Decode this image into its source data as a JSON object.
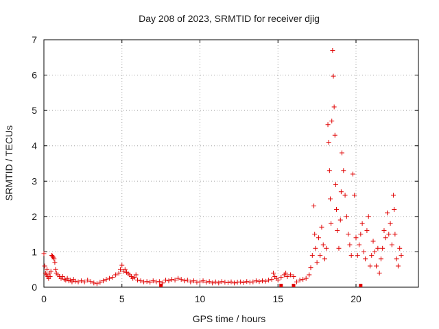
{
  "chart_data": {
    "type": "scatter",
    "title": "Day 208 of 2023, SRMTID for receiver djig",
    "xlabel": "GPS time / hours",
    "ylabel": "SRMTID / TECUs",
    "xlim": [
      0,
      24
    ],
    "ylim": [
      0,
      7
    ],
    "xticks": [
      0,
      5,
      10,
      15,
      20
    ],
    "xtick_labels": [
      "0",
      "5",
      "10",
      "15",
      "20"
    ],
    "yticks": [
      0,
      1,
      2,
      3,
      4,
      5,
      6,
      7
    ],
    "ytick_labels": [
      "0",
      "1",
      "2",
      "3",
      "4",
      "5",
      "6",
      "7"
    ],
    "grid": true,
    "marker": "+",
    "color": "#e00000",
    "series": [
      {
        "name": "SRMTID",
        "points": [
          [
            0.0,
            0.95
          ],
          [
            0.05,
            0.6
          ],
          [
            0.1,
            0.4
          ],
          [
            0.15,
            0.35
          ],
          [
            0.2,
            0.5
          ],
          [
            0.25,
            0.3
          ],
          [
            0.3,
            0.25
          ],
          [
            0.35,
            0.4
          ],
          [
            0.4,
            0.3
          ],
          [
            0.45,
            0.45
          ],
          [
            0.5,
            0.9
          ],
          [
            0.55,
            0.88
          ],
          [
            0.6,
            0.85
          ],
          [
            0.65,
            0.8
          ],
          [
            0.7,
            0.7
          ],
          [
            0.75,
            0.5
          ],
          [
            0.8,
            0.4
          ],
          [
            0.9,
            0.35
          ],
          [
            1.0,
            0.3
          ],
          [
            1.1,
            0.25
          ],
          [
            1.2,
            0.3
          ],
          [
            1.3,
            0.22
          ],
          [
            1.4,
            0.2
          ],
          [
            1.5,
            0.25
          ],
          [
            1.6,
            0.18
          ],
          [
            1.7,
            0.2
          ],
          [
            1.8,
            0.15
          ],
          [
            1.9,
            0.22
          ],
          [
            2.0,
            0.17
          ],
          [
            2.2,
            0.15
          ],
          [
            2.4,
            0.18
          ],
          [
            2.6,
            0.15
          ],
          [
            2.8,
            0.2
          ],
          [
            3.0,
            0.16
          ],
          [
            3.2,
            0.12
          ],
          [
            3.4,
            0.1
          ],
          [
            3.6,
            0.14
          ],
          [
            3.8,
            0.18
          ],
          [
            4.0,
            0.22
          ],
          [
            4.2,
            0.25
          ],
          [
            4.4,
            0.28
          ],
          [
            4.6,
            0.35
          ],
          [
            4.8,
            0.4
          ],
          [
            4.9,
            0.5
          ],
          [
            5.0,
            0.62
          ],
          [
            5.1,
            0.45
          ],
          [
            5.2,
            0.5
          ],
          [
            5.3,
            0.42
          ],
          [
            5.4,
            0.38
          ],
          [
            5.5,
            0.35
          ],
          [
            5.6,
            0.3
          ],
          [
            5.7,
            0.25
          ],
          [
            5.8,
            0.28
          ],
          [
            5.9,
            0.35
          ],
          [
            6.0,
            0.2
          ],
          [
            6.2,
            0.18
          ],
          [
            6.4,
            0.15
          ],
          [
            6.6,
            0.16
          ],
          [
            6.8,
            0.14
          ],
          [
            7.0,
            0.18
          ],
          [
            7.2,
            0.15
          ],
          [
            7.4,
            0.16
          ],
          [
            7.6,
            0.12
          ],
          [
            7.8,
            0.2
          ],
          [
            8.0,
            0.18
          ],
          [
            8.2,
            0.22
          ],
          [
            8.4,
            0.2
          ],
          [
            8.6,
            0.25
          ],
          [
            8.8,
            0.22
          ],
          [
            9.0,
            0.18
          ],
          [
            9.2,
            0.2
          ],
          [
            9.4,
            0.15
          ],
          [
            9.6,
            0.18
          ],
          [
            9.8,
            0.14
          ],
          [
            10.0,
            0.15
          ],
          [
            10.2,
            0.18
          ],
          [
            10.4,
            0.14
          ],
          [
            10.6,
            0.16
          ],
          [
            10.8,
            0.12
          ],
          [
            11.0,
            0.15
          ],
          [
            11.2,
            0.12
          ],
          [
            11.4,
            0.16
          ],
          [
            11.6,
            0.14
          ],
          [
            11.8,
            0.13
          ],
          [
            12.0,
            0.15
          ],
          [
            12.2,
            0.12
          ],
          [
            12.4,
            0.14
          ],
          [
            12.6,
            0.15
          ],
          [
            12.8,
            0.13
          ],
          [
            13.0,
            0.16
          ],
          [
            13.2,
            0.14
          ],
          [
            13.4,
            0.15
          ],
          [
            13.6,
            0.18
          ],
          [
            13.8,
            0.16
          ],
          [
            14.0,
            0.18
          ],
          [
            14.2,
            0.17
          ],
          [
            14.4,
            0.2
          ],
          [
            14.6,
            0.22
          ],
          [
            14.7,
            0.4
          ],
          [
            14.8,
            0.3
          ],
          [
            14.9,
            0.25
          ],
          [
            15.0,
            0.2
          ],
          [
            15.2,
            0.28
          ],
          [
            15.4,
            0.35
          ],
          [
            15.5,
            0.4
          ],
          [
            15.6,
            0.3
          ],
          [
            15.8,
            0.35
          ],
          [
            16.0,
            0.3
          ],
          [
            16.2,
            0.15
          ],
          [
            16.4,
            0.2
          ],
          [
            16.6,
            0.22
          ],
          [
            16.8,
            0.25
          ],
          [
            17.0,
            0.35
          ],
          [
            17.1,
            0.55
          ],
          [
            17.2,
            0.9
          ],
          [
            17.3,
            2.3
          ],
          [
            17.35,
            1.5
          ],
          [
            17.4,
            1.1
          ],
          [
            17.5,
            0.7
          ],
          [
            17.6,
            1.4
          ],
          [
            17.7,
            0.9
          ],
          [
            17.8,
            1.7
          ],
          [
            17.9,
            1.2
          ],
          [
            18.0,
            0.8
          ],
          [
            18.1,
            1.1
          ],
          [
            18.2,
            4.6
          ],
          [
            18.25,
            4.1
          ],
          [
            18.3,
            3.3
          ],
          [
            18.35,
            2.5
          ],
          [
            18.4,
            1.8
          ],
          [
            18.45,
            4.7
          ],
          [
            18.5,
            6.7
          ],
          [
            18.55,
            5.97
          ],
          [
            18.6,
            5.1
          ],
          [
            18.65,
            4.3
          ],
          [
            18.7,
            2.9
          ],
          [
            18.75,
            2.2
          ],
          [
            18.8,
            1.6
          ],
          [
            18.9,
            1.1
          ],
          [
            19.0,
            1.9
          ],
          [
            19.05,
            2.7
          ],
          [
            19.1,
            3.8
          ],
          [
            19.2,
            3.3
          ],
          [
            19.3,
            2.6
          ],
          [
            19.4,
            2.0
          ],
          [
            19.5,
            1.5
          ],
          [
            19.6,
            1.2
          ],
          [
            19.7,
            0.9
          ],
          [
            19.8,
            3.2
          ],
          [
            19.9,
            2.6
          ],
          [
            20.0,
            1.4
          ],
          [
            20.1,
            0.9
          ],
          [
            20.2,
            1.2
          ],
          [
            20.3,
            1.5
          ],
          [
            20.4,
            1.8
          ],
          [
            20.5,
            1.0
          ],
          [
            20.6,
            0.8
          ],
          [
            20.7,
            1.6
          ],
          [
            20.8,
            2.0
          ],
          [
            20.9,
            0.6
          ],
          [
            21.0,
            0.9
          ],
          [
            21.1,
            1.3
          ],
          [
            21.2,
            1.0
          ],
          [
            21.3,
            0.6
          ],
          [
            21.4,
            1.1
          ],
          [
            21.5,
            0.4
          ],
          [
            21.6,
            0.8
          ],
          [
            21.7,
            1.1
          ],
          [
            21.8,
            1.6
          ],
          [
            21.9,
            1.4
          ],
          [
            22.0,
            2.1
          ],
          [
            22.1,
            1.5
          ],
          [
            22.2,
            1.8
          ],
          [
            22.3,
            1.2
          ],
          [
            22.4,
            2.6
          ],
          [
            22.45,
            2.2
          ],
          [
            22.5,
            1.5
          ],
          [
            22.6,
            0.8
          ],
          [
            22.7,
            0.6
          ],
          [
            22.8,
            1.1
          ],
          [
            22.9,
            0.9
          ]
        ]
      }
    ],
    "baseline_markers": [
      7.5,
      15.2,
      16.0,
      20.3
    ]
  }
}
